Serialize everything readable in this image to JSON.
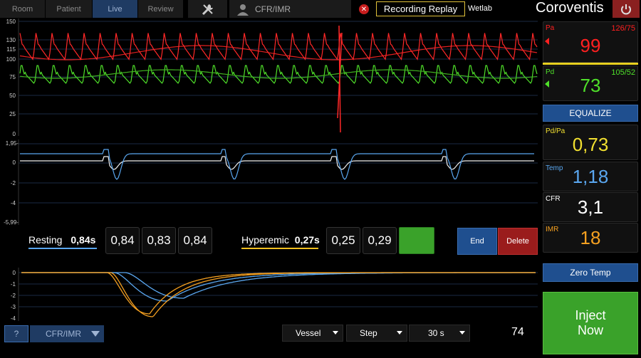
{
  "tabs": [
    "Room",
    "Patient",
    "Live",
    "Review"
  ],
  "header": {
    "mode_label": "CFR/IMR",
    "recording": "Recording Replay",
    "site": "Wetlab",
    "brand": "Coroventis"
  },
  "top_axis": {
    "ticks": [
      "150",
      "130",
      "115",
      "100",
      "75",
      "50",
      "25",
      "0"
    ]
  },
  "mid_axis": {
    "ticks": [
      "1,95-",
      "0",
      "-2",
      "-4",
      "-5,99-"
    ]
  },
  "bot_axis": {
    "ticks": [
      "0",
      "-1",
      "-2",
      "-3",
      "-4"
    ]
  },
  "resting": {
    "label": "Resting",
    "value": "0,84s",
    "samples": [
      "0,84",
      "0,83",
      "0,84"
    ]
  },
  "hyperemic": {
    "label": "Hyperemic",
    "value": "0,27s",
    "samples": [
      "0,25",
      "0,29"
    ]
  },
  "buttons": {
    "end": "End",
    "delete": "Delete",
    "equalize": "EQUALIZE",
    "zero_temp": "Zero Temp",
    "inject_line1": "Inject",
    "inject_line2": "Now",
    "help": "?",
    "mode": "CFR/IMR"
  },
  "controls": {
    "vessel": "Vessel",
    "step": "Step",
    "time": "30 s",
    "count": "74"
  },
  "metrics": {
    "pa": {
      "label": "Pa",
      "value": "99",
      "range": "126/75",
      "color": "#ff2020"
    },
    "pd": {
      "label": "Pd",
      "value": "73",
      "range": "105/52",
      "color": "#4fe02a"
    },
    "pdpa": {
      "label": "Pd/Pa",
      "value": "0,73",
      "color": "#f2e030"
    },
    "temp": {
      "label": "Temp",
      "value": "1,18",
      "color": "#5aa7f0"
    },
    "cfr": {
      "label": "CFR",
      "value": "3,1",
      "color": "#ffffff"
    },
    "imr": {
      "label": "IMR",
      "value": "18",
      "color": "#f5a020"
    }
  }
}
